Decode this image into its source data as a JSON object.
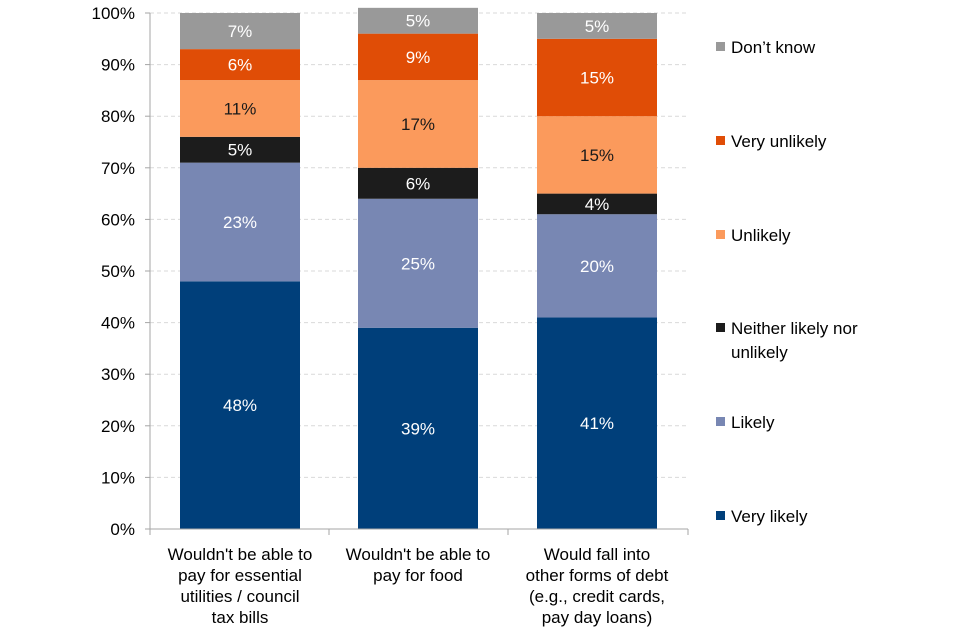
{
  "chart_data": {
    "type": "bar",
    "stacked": true,
    "title": "",
    "xlabel": "",
    "ylabel": "",
    "ylim": [
      0,
      100
    ],
    "yticks": [
      "0%",
      "10%",
      "20%",
      "30%",
      "40%",
      "50%",
      "60%",
      "70%",
      "80%",
      "90%",
      "100%"
    ],
    "grid": true,
    "legend_position": "right",
    "categories": [
      [
        "Wouldn't be able to",
        "pay for essential",
        "utilities / council",
        "tax bills"
      ],
      [
        "Wouldn't be able to",
        "pay for food"
      ],
      [
        "Would fall into",
        "other forms of debt",
        "(e.g., credit cards,",
        "pay day loans)"
      ]
    ],
    "series": [
      {
        "name": "Very likely",
        "color": "#003f7a",
        "label_color": "#ffffff",
        "values": [
          48,
          39,
          41
        ],
        "labels": [
          "48%",
          "39%",
          "41%"
        ]
      },
      {
        "name": "Likely",
        "color": "#7887b3",
        "label_color": "#ffffff",
        "values": [
          23,
          25,
          20
        ],
        "labels": [
          "23%",
          "25%",
          "20%"
        ]
      },
      {
        "name": [
          "Neither likely nor",
          "unlikely"
        ],
        "color": "#1c1c1c",
        "label_color": "#ffffff",
        "values": [
          5,
          6,
          4
        ],
        "labels": [
          "5%",
          "6%",
          "4%"
        ]
      },
      {
        "name": "Unlikely",
        "color": "#fb9a5c",
        "label_color": "#1a1a1a",
        "values": [
          11,
          17,
          15
        ],
        "labels": [
          "11%",
          "17%",
          "15%"
        ]
      },
      {
        "name": "Very unlikely",
        "color": "#e04d06",
        "label_color": "#ffffff",
        "values": [
          6,
          9,
          15
        ],
        "labels": [
          "6%",
          "9%",
          "15%"
        ]
      },
      {
        "name": "Don’t know",
        "color": "#999999",
        "label_color": "#ffffff",
        "values": [
          7,
          5,
          5
        ],
        "labels": [
          "7%",
          "5%",
          "5%"
        ]
      }
    ]
  }
}
